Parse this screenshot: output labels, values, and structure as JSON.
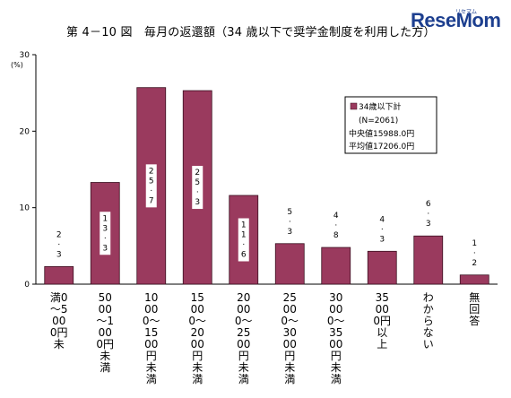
{
  "title": "第 4－10 図　毎月の返還額（34 歳以下で奨学金制度を利用した方）",
  "logo": {
    "text": "ReseMom",
    "sub": "リセマム"
  },
  "chart_data": {
    "type": "bar",
    "title": "第 4－10 図　毎月の返還額（34 歳以下で奨学金制度を利用した方）",
    "ylabel": "(%)",
    "ylim": [
      0,
      30
    ],
    "yticks": [
      "0",
      "10",
      "20",
      "30"
    ],
    "categories": [
      "0～5000円未満",
      "5000～10000円未満",
      "10000～15000円未満",
      "15000～20000円未満",
      "20000～25000円未満",
      "25000～30000円未満",
      "30000～35000円未満",
      "35000円以上",
      "わからない",
      "無回答"
    ],
    "category_labels": [
      "満0～5000円未",
      "5000～1000円未満",
      "10000～1500円未満",
      "15000～2000円未満",
      "20000～2500円未満",
      "25000～3000円未満",
      "30000～3500円未満",
      "35000円以上",
      "わからない",
      "無回答"
    ],
    "series": [
      {
        "name": "34歳以下計",
        "values": [
          2.3,
          13.3,
          25.7,
          25.3,
          11.6,
          5.3,
          4.8,
          4.3,
          6.3,
          1.2
        ]
      }
    ],
    "value_labels": [
      "2.3",
      "13.3",
      "25.7",
      "25.3",
      "11.6",
      "5.3",
      "4.8",
      "4.3",
      "6.3",
      "1.2"
    ],
    "legend": {
      "series": "34歳以下計",
      "lines": [
        "(N=2061)",
        "中央値15988.0円",
        "平均値17206.0円"
      ]
    },
    "grid": false,
    "colors": {
      "bar": "#9a3a5e",
      "bar_stroke": "#3a1020"
    }
  }
}
